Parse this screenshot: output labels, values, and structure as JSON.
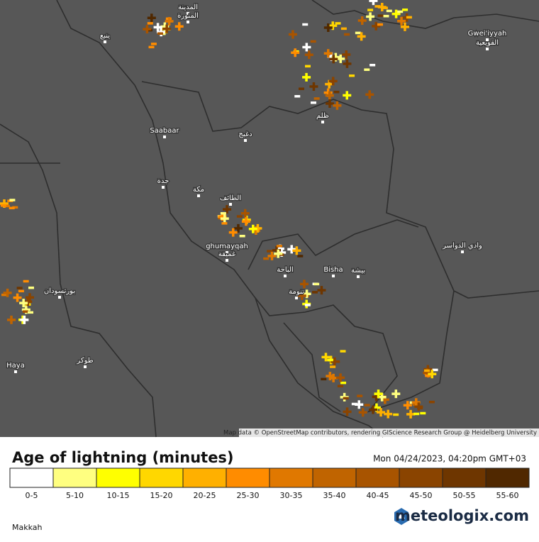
{
  "map": {
    "attribution": "Map data © OpenStreetMap contributors, rendering GIScience Research Group @ Heidelberg University",
    "places": [
      {
        "label": "المدينة"
      },
      {
        "label": "المنورة"
      },
      {
        "label": "ينبع"
      },
      {
        "label": "Gwei'iyyah"
      },
      {
        "label": "القويعية"
      },
      {
        "label": "ظلم"
      },
      {
        "label": "Saabaar"
      },
      {
        "label": "دغبج"
      },
      {
        "label": "جدة"
      },
      {
        "label": "مكة"
      },
      {
        "label": "الطائف"
      },
      {
        "label": "ghumayqah"
      },
      {
        "label": "غميقة"
      },
      {
        "label": "وادي الدواسر"
      },
      {
        "label": "الباحة"
      },
      {
        "label": "Bisha"
      },
      {
        "label": "بيشة"
      },
      {
        "label": "تنومة"
      },
      {
        "label": "بورتسودان"
      },
      {
        "label": "Haya"
      },
      {
        "label": "طوكر"
      }
    ]
  },
  "legend": {
    "title": "Age of lightning (minutes)",
    "timestamp": "Mon 04/24/2023, 04:20pm GMT+03",
    "bins": [
      {
        "label": "0-5",
        "color": "#ffffff"
      },
      {
        "label": "5-10",
        "color": "#ffff80"
      },
      {
        "label": "10-15",
        "color": "#ffff00"
      },
      {
        "label": "15-20",
        "color": "#ffd700"
      },
      {
        "label": "20-25",
        "color": "#ffb000"
      },
      {
        "label": "25-30",
        "color": "#ff8c00"
      },
      {
        "label": "30-35",
        "color": "#e07800"
      },
      {
        "label": "35-40",
        "color": "#c06400"
      },
      {
        "label": "40-45",
        "color": "#a85400"
      },
      {
        "label": "45-50",
        "color": "#8a4400"
      },
      {
        "label": "50-55",
        "color": "#6e3600"
      },
      {
        "label": "55-60",
        "color": "#502800"
      }
    ]
  },
  "footer": {
    "region": "Makkah",
    "brand": "meteologix.com"
  }
}
